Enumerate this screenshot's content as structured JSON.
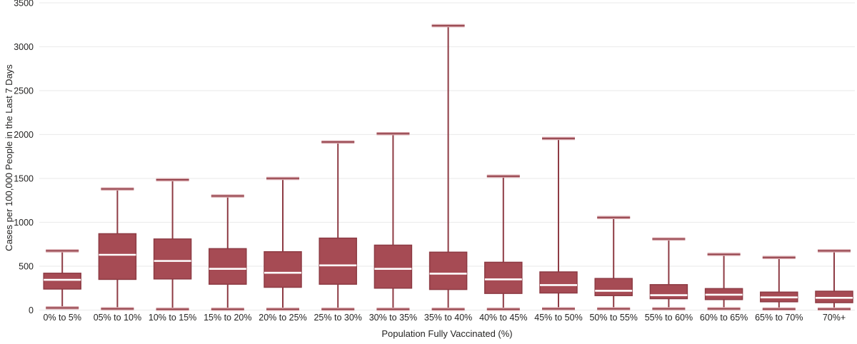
{
  "chart_data": {
    "type": "boxplot",
    "title": "",
    "xlabel": "Population Fully Vaccinated (%)",
    "ylabel": "Cases per 100,000 People in the Last 7 Days",
    "ylim": [
      0,
      3500
    ],
    "yticks": [
      0,
      500,
      1000,
      1500,
      2000,
      2500,
      3000,
      3500
    ],
    "grid": true,
    "legend": "none",
    "categories": [
      "0% to 5%",
      "05% to 10%",
      "10% to 15%",
      "15% to 20%",
      "20% to 25%",
      "25% to 30%",
      "30% to 35%",
      "35% to 40%",
      "40% to 45%",
      "45% to 50%",
      "50% to 55%",
      "55% to 60%",
      "60% to 65%",
      "65% to 70%",
      "70%+"
    ],
    "series": [
      {
        "name": "Cases per 100,000 People in the Last 7 Days",
        "boxes": [
          {
            "category": "0% to 5%",
            "whisker_low": 25,
            "q1": 240,
            "median": 345,
            "q3": 420,
            "whisker_high": 675
          },
          {
            "category": "05% to 10%",
            "whisker_low": 15,
            "q1": 350,
            "median": 630,
            "q3": 870,
            "whisker_high": 1380
          },
          {
            "category": "10% to 15%",
            "whisker_low": 10,
            "q1": 355,
            "median": 560,
            "q3": 810,
            "whisker_high": 1485
          },
          {
            "category": "15% to 20%",
            "whisker_low": 10,
            "q1": 295,
            "median": 470,
            "q3": 700,
            "whisker_high": 1300
          },
          {
            "category": "20% to 25%",
            "whisker_low": 10,
            "q1": 260,
            "median": 425,
            "q3": 665,
            "whisker_high": 1500
          },
          {
            "category": "25% to 30%",
            "whisker_low": 10,
            "q1": 295,
            "median": 510,
            "q3": 820,
            "whisker_high": 1915
          },
          {
            "category": "30% to 35%",
            "whisker_low": 10,
            "q1": 250,
            "median": 470,
            "q3": 740,
            "whisker_high": 2010
          },
          {
            "category": "35% to 40%",
            "whisker_low": 10,
            "q1": 235,
            "median": 415,
            "q3": 660,
            "whisker_high": 3240
          },
          {
            "category": "40% to 45%",
            "whisker_low": 10,
            "q1": 190,
            "median": 350,
            "q3": 545,
            "whisker_high": 1525
          },
          {
            "category": "45% to 50%",
            "whisker_low": 15,
            "q1": 195,
            "median": 285,
            "q3": 435,
            "whisker_high": 1955
          },
          {
            "category": "50% to 55%",
            "whisker_low": 15,
            "q1": 165,
            "median": 220,
            "q3": 360,
            "whisker_high": 1055
          },
          {
            "category": "55% to 60%",
            "whisker_low": 15,
            "q1": 130,
            "median": 170,
            "q3": 290,
            "whisker_high": 810
          },
          {
            "category": "60% to 65%",
            "whisker_low": 15,
            "q1": 120,
            "median": 175,
            "q3": 245,
            "whisker_high": 635
          },
          {
            "category": "65% to 70%",
            "whisker_low": 12,
            "q1": 95,
            "median": 145,
            "q3": 205,
            "whisker_high": 600
          },
          {
            "category": "70%+",
            "whisker_low": 12,
            "q1": 85,
            "median": 140,
            "q3": 215,
            "whisker_high": 675
          }
        ]
      }
    ]
  },
  "colors": {
    "box_fill": "#A64B54",
    "box_border": "#8D3B44",
    "median_line": "#FFFFFF",
    "whisker": "#8E3B44",
    "whisker_cap_halo": "#D6A4A9",
    "gridline": "#EDEDED",
    "text": "#252423",
    "background": "#FFFFFF"
  }
}
